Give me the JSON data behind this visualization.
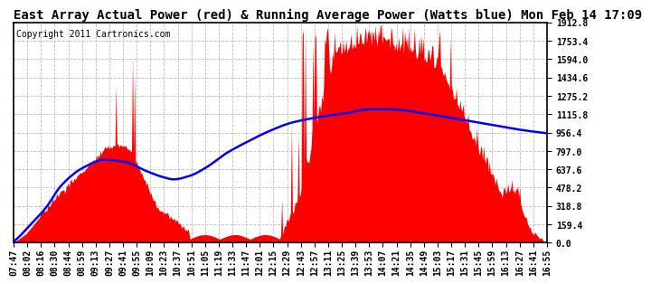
{
  "title": "East Array Actual Power (red) & Running Average Power (Watts blue) Mon Feb 14 17:09",
  "copyright": "Copyright 2011 Cartronics.com",
  "background_color": "#ffffff",
  "plot_bg_color": "#ffffff",
  "grid_color": "#aaaaaa",
  "y_ticks": [
    0.0,
    159.4,
    318.8,
    478.2,
    637.6,
    797.0,
    956.4,
    1115.8,
    1275.2,
    1434.6,
    1594.0,
    1753.4,
    1912.8
  ],
  "ylim": [
    0,
    1912.8
  ],
  "x_labels": [
    "07:47",
    "08:02",
    "08:16",
    "08:30",
    "08:44",
    "08:59",
    "09:13",
    "09:27",
    "09:41",
    "09:55",
    "10:09",
    "10:23",
    "10:37",
    "10:51",
    "11:05",
    "11:19",
    "11:33",
    "11:47",
    "12:01",
    "12:15",
    "12:29",
    "12:43",
    "12:57",
    "13:11",
    "13:25",
    "13:39",
    "13:53",
    "14:07",
    "14:21",
    "14:35",
    "14:49",
    "15:03",
    "15:17",
    "15:31",
    "15:45",
    "15:59",
    "16:13",
    "16:27",
    "16:41",
    "16:55"
  ],
  "actual_color": "#ff0000",
  "avg_color": "#0000ff",
  "title_fontsize": 10,
  "tick_fontsize": 7,
  "copyright_fontsize": 7,
  "avg_curve_x": [
    0.0,
    0.01,
    0.03,
    0.06,
    0.09,
    0.13,
    0.17,
    0.21,
    0.25,
    0.28,
    0.3,
    0.33,
    0.36,
    0.4,
    0.44,
    0.48,
    0.52,
    0.56,
    0.6,
    0.63,
    0.65,
    0.68,
    0.72,
    0.76,
    0.8,
    0.85,
    0.9,
    0.95,
    1.0
  ],
  "avg_curve_y": [
    10,
    50,
    150,
    300,
    500,
    650,
    720,
    700,
    620,
    570,
    550,
    580,
    650,
    780,
    880,
    970,
    1040,
    1080,
    1110,
    1130,
    1150,
    1160,
    1155,
    1130,
    1100,
    1060,
    1020,
    980,
    950
  ]
}
